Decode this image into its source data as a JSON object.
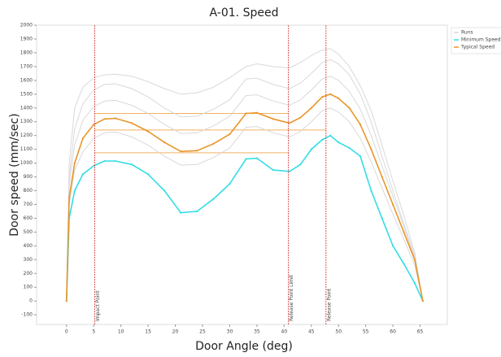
{
  "chart_data": {
    "type": "line",
    "title": "A-01. Speed",
    "x_label": "Door Angle (deg)",
    "y_label": "Door speed (mm/sec)",
    "x": [
      0,
      0.5,
      1.5,
      3,
      5,
      7,
      9,
      12,
      15,
      18,
      21,
      24,
      27,
      30,
      33,
      35,
      38,
      41,
      43,
      45,
      47,
      48.5,
      50,
      52,
      54,
      56,
      58,
      60,
      62,
      64,
      65.5
    ],
    "series": [
      {
        "name": "Runs",
        "color": "#d9d9d9",
        "values": [
          [
            0,
            1000,
            1400,
            1550,
            1620,
            1640,
            1645,
            1630,
            1590,
            1540,
            1500,
            1510,
            1550,
            1620,
            1700,
            1720,
            1700,
            1690,
            1730,
            1780,
            1820,
            1830,
            1790,
            1700,
            1560,
            1380,
            1130,
            870,
            620,
            350,
            0
          ],
          [
            0,
            900,
            1250,
            1430,
            1530,
            1570,
            1575,
            1540,
            1480,
            1400,
            1335,
            1340,
            1390,
            1460,
            1610,
            1615,
            1570,
            1540,
            1580,
            1650,
            1730,
            1750,
            1720,
            1640,
            1500,
            1300,
            1050,
            800,
            560,
            330,
            0
          ],
          [
            0,
            850,
            1130,
            1310,
            1410,
            1450,
            1455,
            1420,
            1360,
            1280,
            1215,
            1220,
            1270,
            1340,
            1490,
            1495,
            1450,
            1420,
            1460,
            1530,
            1610,
            1630,
            1600,
            1520,
            1390,
            1200,
            980,
            760,
            540,
            310,
            0
          ],
          [
            0,
            700,
            950,
            1080,
            1180,
            1220,
            1225,
            1190,
            1130,
            1050,
            985,
            990,
            1040,
            1110,
            1260,
            1265,
            1220,
            1190,
            1230,
            1300,
            1380,
            1400,
            1370,
            1300,
            1180,
            1010,
            820,
            630,
            450,
            260,
            0
          ]
        ]
      },
      {
        "name": "Minimum Speed",
        "color": "#33dde6",
        "values": [
          0,
          600,
          800,
          920,
          980,
          1015,
          1015,
          990,
          920,
          800,
          640,
          650,
          740,
          850,
          1030,
          1035,
          950,
          940,
          990,
          1100,
          1170,
          1200,
          1150,
          1110,
          1050,
          800,
          600,
          400,
          270,
          130,
          0
        ]
      },
      {
        "name": "Typical Speed",
        "color": "#e8962a",
        "values": [
          0,
          750,
          1000,
          1180,
          1280,
          1320,
          1325,
          1290,
          1230,
          1150,
          1085,
          1090,
          1140,
          1210,
          1360,
          1365,
          1320,
          1290,
          1330,
          1400,
          1480,
          1500,
          1470,
          1400,
          1280,
          1100,
          900,
          700,
          500,
          300,
          0
        ]
      }
    ],
    "levels": [
      {
        "y": 1360,
        "x": [
          5.2,
          40.8
        ]
      },
      {
        "y": 1240,
        "x": [
          5.2,
          47.7
        ]
      },
      {
        "y": 1075,
        "x": [
          5.2,
          40.8
        ]
      }
    ],
    "level_color": "#f0b060",
    "markers": [
      {
        "x": 5.2,
        "label": "Impact Point"
      },
      {
        "x": 40.8,
        "label": "Release Point Limit"
      },
      {
        "x": 47.7,
        "label": "Release Point"
      }
    ],
    "marker_color": "#d03030",
    "xlim": [
      -5.5,
      70
    ],
    "ylim": [
      -170,
      2000
    ],
    "xticks": [
      0,
      5,
      10,
      15,
      20,
      25,
      30,
      35,
      40,
      45,
      50,
      55,
      60,
      65
    ],
    "yticks": [
      -100,
      0,
      100,
      200,
      300,
      400,
      500,
      600,
      700,
      800,
      900,
      1000,
      1100,
      1200,
      1300,
      1400,
      1500,
      1600,
      1700,
      1800,
      1900,
      2000
    ],
    "grid": false,
    "legend": "top-right"
  }
}
